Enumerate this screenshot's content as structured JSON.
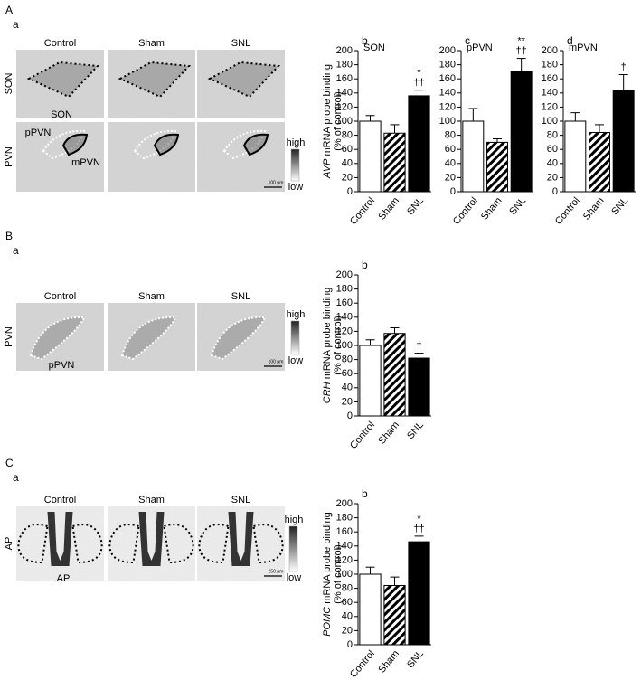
{
  "figure": {
    "panels": [
      {
        "letter": "A",
        "sub": "a",
        "columns": [
          "Control",
          "Sham",
          "SNL"
        ],
        "rows": [
          "SON",
          "PVN"
        ],
        "regions": [
          "SON",
          "pPVN",
          "mPVN"
        ],
        "high": "high",
        "low": "low",
        "scale": "100 μm"
      },
      {
        "letter": "B",
        "sub": "a",
        "columns": [
          "Control",
          "Sham",
          "SNL"
        ],
        "rows": [
          "PVN"
        ],
        "regions": [
          "pPVN"
        ],
        "high": "high",
        "low": "low",
        "scale": "100 μm"
      },
      {
        "letter": "C",
        "sub": "a",
        "columns": [
          "Control",
          "Sham",
          "SNL"
        ],
        "rows": [
          "AP"
        ],
        "regions": [
          "AP"
        ],
        "high": "high",
        "low": "low",
        "scale": "250 μm"
      }
    ]
  },
  "chart_data": [
    {
      "type": "bar",
      "panel": "b",
      "title": "SON",
      "ylabel_gene": "AVP",
      "ylabel": " mRNA probe binding",
      "ylabel2": "(% of control)",
      "categories": [
        "Control",
        "Sham",
        "SNL"
      ],
      "values": [
        100,
        83,
        136
      ],
      "errors": [
        8,
        12,
        8
      ],
      "fills": [
        "white",
        "hatch",
        "black"
      ],
      "annotations": [
        "*",
        "††"
      ],
      "ylim": [
        0,
        200
      ],
      "yticks": [
        0,
        20,
        40,
        60,
        80,
        100,
        120,
        140,
        160,
        180,
        200
      ]
    },
    {
      "type": "bar",
      "panel": "c",
      "title": "pPVN",
      "categories": [
        "Control",
        "Sham",
        "SNL"
      ],
      "values": [
        100,
        70,
        171
      ],
      "errors": [
        18,
        5,
        18
      ],
      "fills": [
        "white",
        "hatch",
        "black"
      ],
      "annotations": [
        "**",
        "††"
      ],
      "ylim": [
        0,
        200
      ],
      "yticks": [
        0,
        20,
        40,
        60,
        80,
        100,
        120,
        140,
        160,
        180,
        200
      ]
    },
    {
      "type": "bar",
      "panel": "d",
      "title": "mPVN",
      "categories": [
        "Control",
        "Sham",
        "SNL"
      ],
      "values": [
        100,
        84,
        143
      ],
      "errors": [
        12,
        11,
        23
      ],
      "fills": [
        "white",
        "hatch",
        "black"
      ],
      "annotations": [
        "†"
      ],
      "ylim": [
        0,
        200
      ],
      "yticks": [
        0,
        20,
        40,
        60,
        80,
        100,
        120,
        140,
        160,
        180,
        200
      ]
    },
    {
      "type": "bar",
      "panel": "b",
      "ylabel_gene": "CRH",
      "ylabel": " mRNA probe binding",
      "ylabel2": "(% of control)",
      "categories": [
        "Control",
        "Sham",
        "SNL"
      ],
      "values": [
        100,
        117,
        82
      ],
      "errors": [
        8,
        8,
        7
      ],
      "fills": [
        "white",
        "hatch",
        "black"
      ],
      "annotations": [
        "†"
      ],
      "ylim": [
        0,
        200
      ],
      "yticks": [
        0,
        20,
        40,
        60,
        80,
        100,
        120,
        140,
        160,
        180,
        200
      ]
    },
    {
      "type": "bar",
      "panel": "b",
      "ylabel_gene": "POMC",
      "ylabel": " mRNA probe binding",
      "ylabel2": "(% of control)",
      "categories": [
        "Control",
        "Sham",
        "SNL"
      ],
      "values": [
        100,
        84,
        146
      ],
      "errors": [
        10,
        12,
        8
      ],
      "fills": [
        "white",
        "hatch",
        "black"
      ],
      "annotations": [
        "*",
        "††"
      ],
      "ylim": [
        0,
        200
      ],
      "yticks": [
        0,
        20,
        40,
        60,
        80,
        100,
        120,
        140,
        160,
        180,
        200
      ]
    }
  ]
}
